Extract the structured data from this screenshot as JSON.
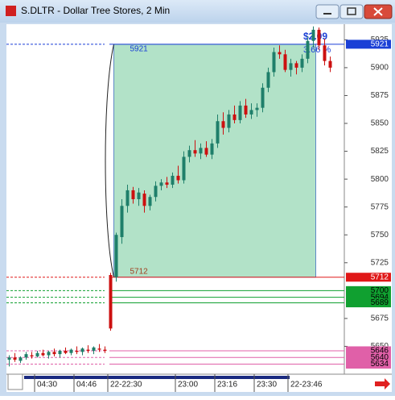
{
  "chart_data": {
    "type": "candlestick",
    "title": "S.DLTR - Dollar Tree Stores, 2 Min",
    "categories": [
      null,
      null,
      null,
      null,
      null,
      "04:30",
      null,
      null,
      null,
      null,
      null,
      null,
      "04:46",
      null,
      null,
      null,
      null,
      null,
      "22-22:30",
      null,
      null,
      null,
      null,
      null,
      null,
      null,
      null,
      null,
      null,
      null,
      "23:00",
      null,
      null,
      null,
      null,
      null,
      null,
      "23:16",
      null,
      null,
      null,
      null,
      null,
      null,
      "23:30",
      null,
      null,
      null,
      null,
      null,
      "22-23:46",
      null,
      null,
      null,
      null,
      null,
      null,
      null
    ],
    "open": [
      5638,
      5640,
      5637,
      5640,
      5642,
      5641,
      5644,
      5642,
      5645,
      5643,
      5646,
      5644,
      5646,
      5645,
      5647,
      5646,
      5648,
      5647,
      5714,
      5712,
      5748,
      5776,
      5790,
      5782,
      5787,
      5776,
      5784,
      5794,
      5797,
      5795,
      5803,
      5799,
      5820,
      5826,
      5823,
      5828,
      5822,
      5832,
      5852,
      5846,
      5858,
      5853,
      5866,
      5858,
      5862,
      5864,
      5882,
      5896,
      5914,
      5912,
      5898,
      5904,
      5900,
      5908,
      5924,
      5934,
      5920,
      5906
    ],
    "high": [
      5642,
      5644,
      5641,
      5645,
      5645,
      5646,
      5647,
      5646,
      5648,
      5647,
      5649,
      5648,
      5650,
      5649,
      5651,
      5650,
      5652,
      5650,
      5716,
      5752,
      5782,
      5795,
      5793,
      5792,
      5790,
      5786,
      5798,
      5800,
      5802,
      5806,
      5812,
      5825,
      5830,
      5835,
      5832,
      5834,
      5836,
      5858,
      5860,
      5862,
      5866,
      5870,
      5872,
      5868,
      5868,
      5886,
      5900,
      5918,
      5920,
      5916,
      5908,
      5906,
      5912,
      5928,
      5937,
      5936,
      5926,
      5910
    ],
    "low": [
      5632,
      5636,
      5635,
      5638,
      5639,
      5640,
      5641,
      5639,
      5641,
      5640,
      5643,
      5642,
      5643,
      5642,
      5644,
      5643,
      5645,
      5644,
      5664,
      5708,
      5742,
      5770,
      5778,
      5776,
      5770,
      5772,
      5780,
      5790,
      5792,
      5792,
      5796,
      5796,
      5815,
      5820,
      5818,
      5820,
      5818,
      5828,
      5840,
      5842,
      5850,
      5850,
      5855,
      5854,
      5856,
      5860,
      5878,
      5892,
      5908,
      5896,
      5892,
      5894,
      5896,
      5904,
      5918,
      5916,
      5902,
      5896
    ],
    "close": [
      5640,
      5638,
      5640,
      5643,
      5641,
      5644,
      5642,
      5645,
      5643,
      5646,
      5644,
      5647,
      5645,
      5648,
      5646,
      5649,
      5647,
      5646,
      5666,
      5750,
      5776,
      5790,
      5782,
      5788,
      5776,
      5784,
      5794,
      5797,
      5795,
      5803,
      5799,
      5820,
      5826,
      5823,
      5828,
      5822,
      5832,
      5852,
      5846,
      5858,
      5853,
      5866,
      5858,
      5862,
      5864,
      5882,
      5896,
      5914,
      5912,
      5898,
      5904,
      5900,
      5908,
      5924,
      5934,
      5920,
      5906,
      5900
    ],
    "up_color": "#1f7f6a",
    "down_color": "#cc1010",
    "ylim": [
      5625,
      5939
    ],
    "yticks": [
      5925,
      5900,
      5875,
      5850,
      5825,
      5800,
      5775,
      5750,
      5725,
      5675,
      5650
    ],
    "range_box": {
      "top": 5921,
      "bottom": 5712,
      "color": "#b2e2c8"
    },
    "change_label": "$2.09",
    "percent_label": "3.66 %",
    "levels": [
      {
        "value": 5921,
        "color": "#1a3fd6"
      },
      {
        "value": 5712,
        "color": "#e01818"
      },
      {
        "value": 5700,
        "color": "#10a030"
      },
      {
        "value": 5694,
        "color": "#10a030"
      },
      {
        "value": 5689,
        "color": "#10a030"
      },
      {
        "value": 5646,
        "color": "#e060a8"
      },
      {
        "value": 5640,
        "color": "#e060a8"
      },
      {
        "value": 5634,
        "color": "#e060a8"
      }
    ]
  }
}
